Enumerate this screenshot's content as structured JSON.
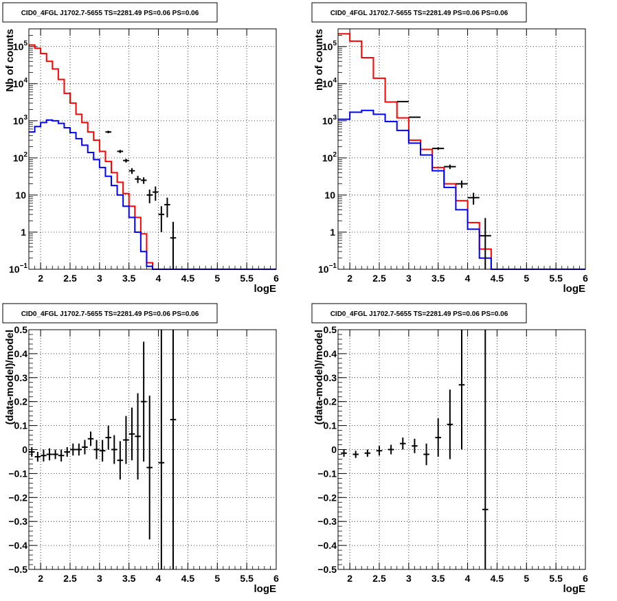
{
  "chart_data": [
    {
      "type": "histogram",
      "title": "CID0_4FGL J1702.7-5655 TS=2281.49 PS=0.06 PS=0.06",
      "xlabel": "logE",
      "ylabel": "Nb of counts",
      "xlim": [
        1.8,
        6.0
      ],
      "ylim": [
        0.1,
        300000
      ],
      "yscale": "log",
      "grid": true,
      "x_ticks": [
        "2",
        "2.5",
        "3",
        "3.5",
        "4",
        "4.5",
        "5",
        "5.5",
        "6"
      ],
      "y_ticks": [
        {
          "value": 0.1,
          "label": "10",
          "exp": "−1"
        },
        {
          "value": 1,
          "label": "1",
          "exp": ""
        },
        {
          "value": 10,
          "label": "10",
          "exp": ""
        },
        {
          "value": 100,
          "label": "10",
          "exp": "2"
        },
        {
          "value": 1000,
          "label": "10",
          "exp": "3"
        },
        {
          "value": 10000,
          "label": "10",
          "exp": "4"
        },
        {
          "value": 100000,
          "label": "10",
          "exp": "5"
        }
      ],
      "bin_edges": [
        1.8,
        1.9,
        2.0,
        2.1,
        2.2,
        2.3,
        2.4,
        2.5,
        2.6,
        2.7,
        2.8,
        2.9,
        3.0,
        3.1,
        3.2,
        3.3,
        3.4,
        3.5,
        3.6,
        3.7,
        3.8,
        3.9,
        4.0,
        4.1,
        4.2,
        4.3,
        4.4,
        4.5,
        4.6,
        4.7,
        4.8,
        4.9,
        5.0,
        5.1,
        5.2,
        5.3,
        5.4,
        5.5,
        5.6,
        5.7,
        5.8,
        5.9,
        6.0
      ],
      "series": [
        {
          "color": "#ff0000",
          "values": [
            110000,
            90000,
            65000,
            40000,
            25000,
            13000,
            5500,
            3000,
            1500,
            900,
            500,
            300,
            150,
            80,
            40,
            22,
            11,
            5,
            2.5,
            0.9,
            0.15,
            0.1,
            0.1,
            0.1,
            0.1,
            0.1,
            0.1,
            0.1,
            0.1,
            0.1,
            0.1,
            0.1,
            0.1,
            0.1,
            0.1,
            0.1,
            0.1,
            0.1,
            0.1,
            0.1,
            0.1,
            0.1
          ]
        },
        {
          "color": "#0000ff",
          "values": [
            500,
            700,
            900,
            1050,
            1000,
            850,
            650,
            480,
            330,
            220,
            140,
            90,
            55,
            32,
            18,
            10,
            5,
            2.5,
            1.0,
            0.3,
            0.12,
            0.1,
            0.1,
            0.1,
            0.1,
            0.1,
            0.1,
            0.1,
            0.1,
            0.1,
            0.1,
            0.1,
            0.1,
            0.1,
            0.1,
            0.1,
            0.1,
            0.1,
            0.1,
            0.1,
            0.1,
            0.1
          ]
        }
      ],
      "points": [
        {
          "x": 3.15,
          "y": 500,
          "err": 40
        },
        {
          "x": 3.35,
          "y": 150,
          "err": 15
        },
        {
          "x": 3.45,
          "y": 85,
          "err": 10
        },
        {
          "x": 3.55,
          "y": 45,
          "err": 8
        },
        {
          "x": 3.65,
          "y": 27,
          "err": 6
        },
        {
          "x": 3.75,
          "y": 25,
          "err": 5
        },
        {
          "x": 3.85,
          "y": 10,
          "err": 4
        },
        {
          "x": 3.95,
          "y": 12,
          "err": 5
        },
        {
          "x": 4.05,
          "y": 3,
          "err": 2
        },
        {
          "x": 4.15,
          "y": 5.5,
          "err": 3
        },
        {
          "x": 4.25,
          "y": 0.7,
          "err": 1.2
        }
      ]
    },
    {
      "type": "histogram",
      "title": "CID0_4FGL J1702.7-5655 TS=2281.49 PS=0.06 PS=0.06",
      "xlabel": "logE",
      "ylabel": "nb of counts",
      "xlim": [
        1.8,
        6.0
      ],
      "ylim": [
        0.1,
        300000
      ],
      "yscale": "log",
      "grid": true,
      "x_ticks": [
        "2",
        "2.5",
        "3",
        "3.5",
        "4",
        "4.5",
        "5",
        "5.5",
        "6"
      ],
      "y_ticks": [
        {
          "value": 0.1,
          "label": "10",
          "exp": "−1"
        },
        {
          "value": 1,
          "label": "1",
          "exp": ""
        },
        {
          "value": 10,
          "label": "10",
          "exp": ""
        },
        {
          "value": 100,
          "label": "10",
          "exp": "2"
        },
        {
          "value": 1000,
          "label": "10",
          "exp": "3"
        },
        {
          "value": 10000,
          "label": "10",
          "exp": "4"
        },
        {
          "value": 100000,
          "label": "10",
          "exp": "5"
        }
      ],
      "bin_edges": [
        1.8,
        2.0,
        2.2,
        2.4,
        2.6,
        2.8,
        3.0,
        3.2,
        3.4,
        3.6,
        3.8,
        4.0,
        4.2,
        4.4,
        4.6,
        4.8,
        5.0,
        5.2,
        5.4,
        5.6,
        5.8,
        6.0
      ],
      "series": [
        {
          "color": "#ff0000",
          "values": [
            220000,
            140000,
            50000,
            14000,
            3200,
            1200,
            300,
            170,
            55,
            20,
            7,
            1.8,
            0.35,
            0.1,
            0.1,
            0.1,
            0.1,
            0.1,
            0.1,
            0.1,
            0.1
          ]
        },
        {
          "color": "#0000ff",
          "values": [
            1100,
            1700,
            1900,
            1500,
            950,
            550,
            250,
            120,
            45,
            16,
            4,
            1.2,
            0.2,
            0.1,
            0.1,
            0.1,
            0.1,
            0.1,
            0.1,
            0.1,
            0.1
          ]
        }
      ],
      "points": [
        {
          "x": 2.9,
          "y": 3300,
          "err": 60
        },
        {
          "x": 3.1,
          "y": 1250,
          "err": 35
        },
        {
          "x": 3.5,
          "y": 180,
          "err": 14
        },
        {
          "x": 3.7,
          "y": 58,
          "err": 8
        },
        {
          "x": 3.9,
          "y": 20,
          "err": 4.5
        },
        {
          "x": 4.1,
          "y": 8.5,
          "err": 3
        },
        {
          "x": 4.3,
          "y": 0.8,
          "err": 1.6
        }
      ]
    },
    {
      "type": "scatter",
      "title": "CID0_4FGL J1702.7-5655 TS=2281.49 PS=0.06 PS=0.06",
      "xlabel": "logE",
      "ylabel": "(data-model)/model",
      "xlim": [
        1.8,
        6.0
      ],
      "ylim": [
        -0.5,
        0.5
      ],
      "grid": true,
      "x_ticks": [
        "2",
        "2.5",
        "3",
        "3.5",
        "4",
        "4.5",
        "5",
        "5.5",
        "6"
      ],
      "y_ticks": [
        "−0.5",
        "−0.4",
        "−0.3",
        "−0.2",
        "−0.1",
        "0",
        "0.1",
        "0.2",
        "0.3",
        "0.4",
        "0.5"
      ],
      "points": [
        {
          "x": 1.85,
          "y": -0.01,
          "err": 0.02
        },
        {
          "x": 1.95,
          "y": -0.03,
          "err": 0.02
        },
        {
          "x": 2.05,
          "y": -0.025,
          "err": 0.025
        },
        {
          "x": 2.15,
          "y": -0.02,
          "err": 0.025
        },
        {
          "x": 2.25,
          "y": -0.02,
          "err": 0.02
        },
        {
          "x": 2.35,
          "y": -0.025,
          "err": 0.025
        },
        {
          "x": 2.45,
          "y": -0.01,
          "err": 0.02
        },
        {
          "x": 2.55,
          "y": 0.0,
          "err": 0.025
        },
        {
          "x": 2.65,
          "y": 0.0,
          "err": 0.025
        },
        {
          "x": 2.75,
          "y": 0.01,
          "err": 0.03
        },
        {
          "x": 2.85,
          "y": 0.045,
          "err": 0.03
        },
        {
          "x": 2.95,
          "y": 0.0,
          "err": 0.04
        },
        {
          "x": 3.05,
          "y": -0.005,
          "err": 0.045
        },
        {
          "x": 3.15,
          "y": 0.05,
          "err": 0.05
        },
        {
          "x": 3.25,
          "y": 0.0,
          "err": 0.06
        },
        {
          "x": 3.35,
          "y": -0.045,
          "err": 0.08
        },
        {
          "x": 3.45,
          "y": 0.04,
          "err": 0.1
        },
        {
          "x": 3.55,
          "y": 0.065,
          "err": 0.11
        },
        {
          "x": 3.65,
          "y": 0.055,
          "err": 0.18
        },
        {
          "x": 3.75,
          "y": 0.2,
          "err": 0.25
        },
        {
          "x": 3.85,
          "y": -0.075,
          "err": 0.3
        },
        {
          "x": 4.05,
          "y": -0.055,
          "err": 0.6
        },
        {
          "x": 4.25,
          "y": 0.125,
          "err": 0.8
        }
      ]
    },
    {
      "type": "scatter",
      "title": "CID0_4FGL J1702.7-5655 TS=2281.49 PS=0.06 PS=0.06",
      "xlabel": "logE",
      "ylabel": "(data-model)/model",
      "xlim": [
        1.8,
        6.0
      ],
      "ylim": [
        -0.5,
        0.5
      ],
      "grid": true,
      "x_ticks": [
        "2",
        "2.5",
        "3",
        "3.5",
        "4",
        "4.5",
        "5",
        "5.5",
        "6"
      ],
      "y_ticks": [
        "−0.5",
        "−0.4",
        "−0.3",
        "−0.2",
        "−0.1",
        "0",
        "0.1",
        "0.2",
        "0.3",
        "0.4",
        "0.5"
      ],
      "points": [
        {
          "x": 1.9,
          "y": -0.015,
          "err": 0.015
        },
        {
          "x": 2.1,
          "y": -0.02,
          "err": 0.015
        },
        {
          "x": 2.3,
          "y": -0.015,
          "err": 0.015
        },
        {
          "x": 2.5,
          "y": -0.005,
          "err": 0.02
        },
        {
          "x": 2.7,
          "y": 0.0,
          "err": 0.02
        },
        {
          "x": 2.9,
          "y": 0.025,
          "err": 0.025
        },
        {
          "x": 3.1,
          "y": 0.015,
          "err": 0.03
        },
        {
          "x": 3.3,
          "y": -0.02,
          "err": 0.045
        },
        {
          "x": 3.5,
          "y": 0.05,
          "err": 0.08
        },
        {
          "x": 3.7,
          "y": 0.105,
          "err": 0.145
        },
        {
          "x": 3.9,
          "y": 0.27,
          "err": 0.27
        },
        {
          "x": 4.3,
          "y": -0.25,
          "err": 0.8
        }
      ]
    }
  ]
}
